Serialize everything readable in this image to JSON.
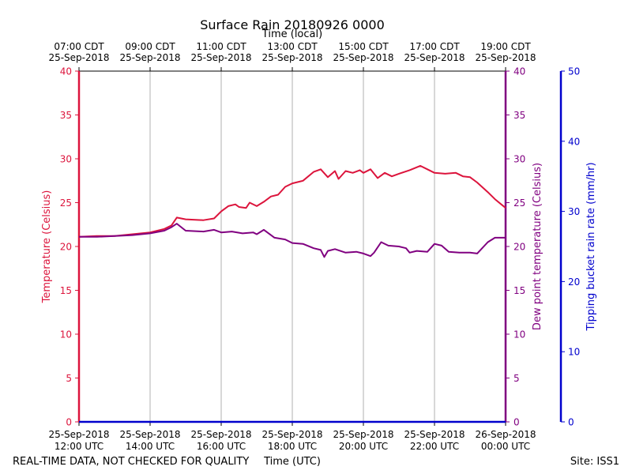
{
  "chart_data": {
    "type": "line",
    "title": "Surface Rain 20180926 0000",
    "top_axis_label": "Time (local)",
    "bottom_axis_label": "Time (UTC)",
    "left_axis_label": "Temperature (Celsius)",
    "right_axis_label": "Dew point temperature (Celsius)",
    "far_right_axis_label": "Tipping bucket rain rate (mm/hr)",
    "footer_left": "REAL-TIME DATA, NOT CHECKED FOR QUALITY",
    "footer_right": "Site: ISS1",
    "xlim_hours_utc": [
      12,
      24
    ],
    "ylim_temp": [
      0,
      40
    ],
    "ylim_rain": [
      0,
      50
    ],
    "grid_x": true,
    "temp_ticks": [
      "0",
      "5",
      "10",
      "15",
      "20",
      "25",
      "30",
      "35",
      "40"
    ],
    "rain_ticks": [
      "0",
      "10",
      "20",
      "30",
      "40",
      "50"
    ],
    "bottom_ticks": [
      {
        "line1": "25-Sep-2018",
        "line2": "12:00 UTC"
      },
      {
        "line1": "25-Sep-2018",
        "line2": "14:00 UTC"
      },
      {
        "line1": "25-Sep-2018",
        "line2": "16:00 UTC"
      },
      {
        "line1": "25-Sep-2018",
        "line2": "18:00 UTC"
      },
      {
        "line1": "25-Sep-2018",
        "line2": "20:00 UTC"
      },
      {
        "line1": "25-Sep-2018",
        "line2": "22:00 UTC"
      },
      {
        "line1": "26-Sep-2018",
        "line2": "00:00 UTC"
      }
    ],
    "top_ticks": [
      {
        "line1": "07:00 CDT",
        "line2": "25-Sep-2018"
      },
      {
        "line1": "09:00 CDT",
        "line2": "25-Sep-2018"
      },
      {
        "line1": "11:00 CDT",
        "line2": "25-Sep-2018"
      },
      {
        "line1": "13:00 CDT",
        "line2": "25-Sep-2018"
      },
      {
        "line1": "15:00 CDT",
        "line2": "25-Sep-2018"
      },
      {
        "line1": "17:00 CDT",
        "line2": "25-Sep-2018"
      },
      {
        "line1": "19:00 CDT",
        "line2": "25-Sep-2018"
      }
    ],
    "colors": {
      "temperature": "#dc143c",
      "dewpoint": "#800080",
      "rain": "#0000cd",
      "grid": "#b0b0b0"
    },
    "series": [
      {
        "name": "Temperature",
        "axis": "left",
        "x": [
          12.0,
          12.5,
          13.0,
          13.5,
          14.0,
          14.4,
          14.6,
          14.75,
          15.0,
          15.5,
          15.8,
          16.0,
          16.2,
          16.4,
          16.5,
          16.7,
          16.8,
          17.0,
          17.2,
          17.4,
          17.6,
          17.8,
          18.0,
          18.3,
          18.6,
          18.8,
          19.0,
          19.2,
          19.3,
          19.5,
          19.7,
          19.9,
          20.0,
          20.2,
          20.4,
          20.6,
          20.8,
          21.0,
          21.3,
          21.6,
          21.8,
          22.0,
          22.3,
          22.6,
          22.8,
          23.0,
          23.2,
          23.5,
          23.7,
          24.0
        ],
        "values": [
          21.1,
          21.2,
          21.2,
          21.4,
          21.6,
          22.0,
          22.4,
          23.3,
          23.1,
          23.0,
          23.2,
          24.0,
          24.6,
          24.8,
          24.5,
          24.4,
          25.0,
          24.6,
          25.1,
          25.7,
          25.9,
          26.8,
          27.2,
          27.5,
          28.5,
          28.8,
          27.9,
          28.6,
          27.7,
          28.6,
          28.4,
          28.7,
          28.4,
          28.8,
          27.8,
          28.4,
          28.0,
          28.3,
          28.7,
          29.2,
          28.8,
          28.4,
          28.3,
          28.4,
          28.0,
          27.9,
          27.3,
          26.2,
          25.4,
          24.4
        ]
      },
      {
        "name": "Dew point temperature",
        "axis": "right",
        "x": [
          12.0,
          12.5,
          13.0,
          13.5,
          14.0,
          14.4,
          14.6,
          14.75,
          15.0,
          15.5,
          15.8,
          16.0,
          16.3,
          16.6,
          16.9,
          17.0,
          17.2,
          17.5,
          17.8,
          18.0,
          18.3,
          18.6,
          18.8,
          18.9,
          19.0,
          19.2,
          19.5,
          19.8,
          20.0,
          20.2,
          20.3,
          20.5,
          20.7,
          21.0,
          21.2,
          21.3,
          21.5,
          21.8,
          22.0,
          22.2,
          22.4,
          22.7,
          23.0,
          23.2,
          23.5,
          23.7,
          24.0
        ],
        "values": [
          21.1,
          21.1,
          21.2,
          21.3,
          21.5,
          21.8,
          22.2,
          22.6,
          21.8,
          21.7,
          21.9,
          21.6,
          21.7,
          21.5,
          21.6,
          21.4,
          21.9,
          21.0,
          20.8,
          20.4,
          20.3,
          19.8,
          19.6,
          18.8,
          19.5,
          19.7,
          19.3,
          19.4,
          19.2,
          18.9,
          19.3,
          20.5,
          20.1,
          20.0,
          19.8,
          19.3,
          19.5,
          19.4,
          20.3,
          20.1,
          19.4,
          19.3,
          19.3,
          19.2,
          20.5,
          21.0,
          21.0
        ]
      },
      {
        "name": "Tipping bucket rain rate",
        "axis": "far-right",
        "x": [
          12.0,
          24.0
        ],
        "values": [
          0,
          0
        ]
      }
    ]
  }
}
